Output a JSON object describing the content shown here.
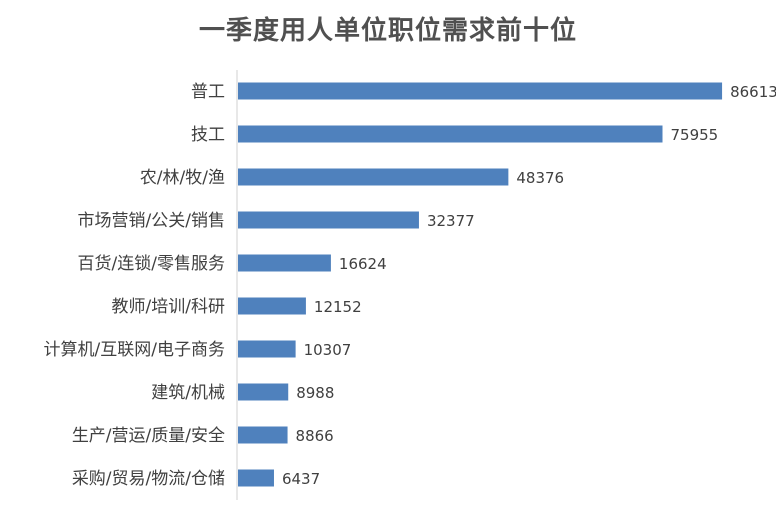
{
  "chart_data": {
    "type": "bar",
    "orientation": "horizontal",
    "title": "一季度用人单位职位需求前十位",
    "categories": [
      "普工",
      "技工",
      "农/林/牧/渔",
      "市场营销/公关/销售",
      "百货/连锁/零售服务",
      "教师/培训/科研",
      "计算机/互联网/电子商务",
      "建筑/机械",
      "生产/营运/质量/安全",
      "采购/贸易/物流/仓储"
    ],
    "values": [
      86613,
      75955,
      48376,
      32377,
      16624,
      12152,
      10307,
      8988,
      8866,
      6437
    ],
    "bar_color": "#4F81BD",
    "xlim": [
      0,
      90000
    ],
    "grid": false,
    "legend": "none",
    "data_labels": true
  }
}
